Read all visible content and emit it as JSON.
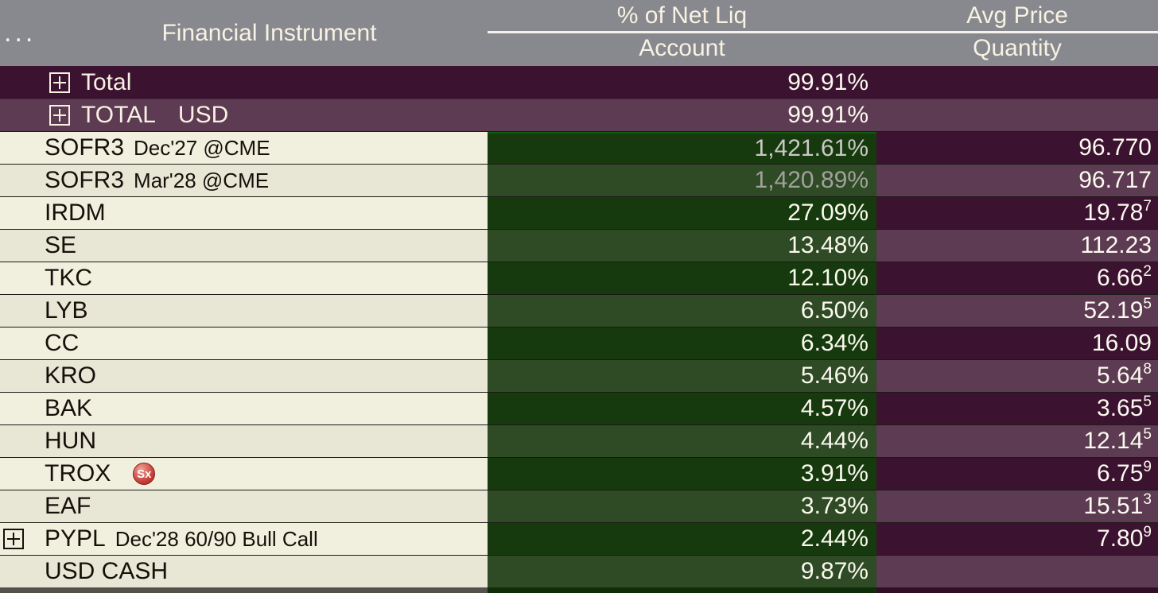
{
  "header": {
    "dots": "...",
    "instrument": "Financial Instrument",
    "pct_top": "% of Net Liq",
    "pct_bottom": "Account",
    "price_top": "Avg Price",
    "price_bottom": "Quantity"
  },
  "colors": {
    "header_bg": "#88888f",
    "purple_dark": "#3b1230",
    "purple_light": "#5d3b53",
    "green_dark": "#163a0e",
    "green_light": "#2e4b25",
    "cream_light": "#f1f0df",
    "cream_dark": "#e8e7d6",
    "badge_red": "#a82522"
  },
  "rows": [
    {
      "kind": "total",
      "shade": "dark",
      "expand": true,
      "label": "Total",
      "pct": "99.91%",
      "price": ""
    },
    {
      "kind": "total",
      "shade": "light",
      "expand": true,
      "label": "TOTAL",
      "label2": "USD",
      "pct": "99.91%",
      "price": ""
    },
    {
      "kind": "instrument",
      "ticker": "SOFR3",
      "desc": "Dec'27 @CME",
      "pct": "1,421.61%",
      "pct_dim": 1,
      "price": "96.770"
    },
    {
      "kind": "instrument",
      "ticker": "SOFR3",
      "desc": "Mar'28 @CME",
      "pct": "1,420.89%",
      "pct_dim": 2,
      "price": "96.717"
    },
    {
      "kind": "instrument",
      "ticker": "IRDM",
      "pct": "27.09%",
      "price": "19.78",
      "price_sup": "7"
    },
    {
      "kind": "instrument",
      "ticker": "SE",
      "pct": "13.48%",
      "price": "112.23"
    },
    {
      "kind": "instrument",
      "ticker": "TKC",
      "pct": "12.10%",
      "price": "6.66",
      "price_sup": "2"
    },
    {
      "kind": "instrument",
      "ticker": "LYB",
      "pct": "6.50%",
      "price": "52.19",
      "price_sup": "5"
    },
    {
      "kind": "instrument",
      "ticker": "CC",
      "pct": "6.34%",
      "price": "16.09"
    },
    {
      "kind": "instrument",
      "ticker": "KRO",
      "pct": "5.46%",
      "price": "5.64",
      "price_sup": "8"
    },
    {
      "kind": "instrument",
      "ticker": "BAK",
      "pct": "4.57%",
      "price": "3.65",
      "price_sup": "5"
    },
    {
      "kind": "instrument",
      "ticker": "HUN",
      "pct": "4.44%",
      "price": "12.14",
      "price_sup": "5"
    },
    {
      "kind": "instrument",
      "ticker": "TROX",
      "badge": "Sx",
      "pct": "3.91%",
      "price": "6.75",
      "price_sup": "9"
    },
    {
      "kind": "instrument",
      "ticker": "EAF",
      "pct": "3.73%",
      "price": "15.51",
      "price_sup": "3"
    },
    {
      "kind": "instrument",
      "ticker": "PYPL",
      "desc": "Dec'28 60/90 Bull Call",
      "expand": true,
      "expand_far_left": true,
      "pct": "2.44%",
      "price": "7.80",
      "price_sup": "9"
    },
    {
      "kind": "instrument",
      "ticker": "USD CASH",
      "pct": "9.87%",
      "price": ""
    }
  ]
}
